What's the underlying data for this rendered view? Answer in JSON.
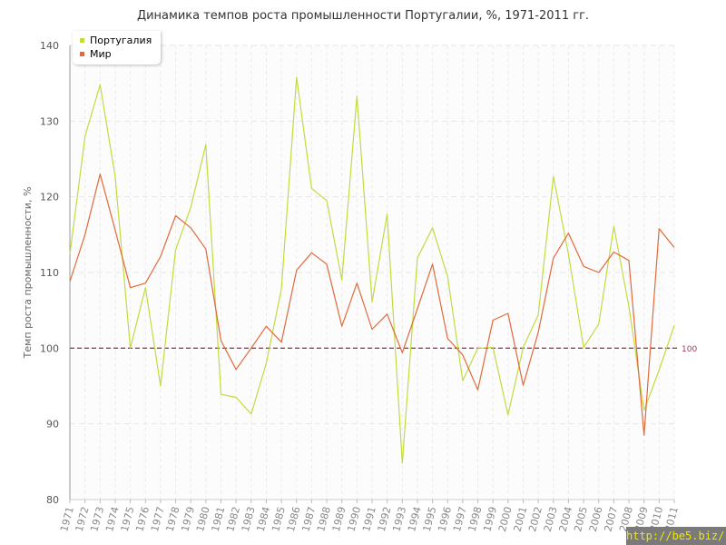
{
  "chart_data": {
    "type": "line",
    "title": "Динамика темпов роста промышленности Португалии, %, 1971-2011 гг.",
    "xlabel": "",
    "ylabel": "Темп роста промышленности, %",
    "ylim": [
      80,
      140
    ],
    "yticks": [
      80,
      90,
      100,
      110,
      120,
      130,
      140
    ],
    "grid": true,
    "legend_position": "top-left",
    "x": [
      "1971",
      "1972",
      "1973",
      "1974",
      "1975",
      "1976",
      "1977",
      "1978",
      "1979",
      "1980",
      "1981",
      "1982",
      "1983",
      "1984",
      "1985",
      "1986",
      "1987",
      "1988",
      "1989",
      "1990",
      "1991",
      "1992",
      "1993",
      "1994",
      "1995",
      "1996",
      "1997",
      "1998",
      "1999",
      "2000",
      "2001",
      "2002",
      "2003",
      "2004",
      "2005",
      "2006",
      "2007",
      "2008",
      "2009",
      "2010",
      "2011"
    ],
    "series": [
      {
        "name": "Португалия",
        "color": "#c1dc3f",
        "values": [
          112.4,
          128.0,
          134.8,
          122.7,
          100.0,
          108.0,
          95.0,
          113.0,
          118.6,
          126.9,
          93.9,
          93.5,
          91.3,
          98.0,
          107.8,
          135.8,
          121.1,
          119.5,
          109.0,
          133.3,
          106.1,
          117.7,
          84.8,
          111.9,
          115.9,
          109.5,
          95.7,
          100.0,
          100.1,
          91.2,
          100.1,
          104.4,
          122.7,
          112.4,
          100.1,
          103.2,
          116.1,
          105.5,
          91.8,
          97.1,
          103.0
        ]
      },
      {
        "name": "Мир",
        "color": "#e06a3a",
        "values": [
          108.8,
          115.0,
          123.0,
          115.6,
          108.0,
          108.6,
          112.1,
          117.5,
          115.9,
          113.1,
          101.0,
          97.2,
          100.0,
          102.9,
          100.8,
          110.3,
          112.6,
          111.1,
          102.9,
          108.6,
          102.5,
          104.5,
          99.4,
          105.2,
          111.1,
          101.3,
          99.1,
          94.5,
          103.7,
          104.6,
          95.1,
          102.1,
          111.9,
          115.2,
          110.8,
          110.0,
          112.7,
          111.6,
          88.5,
          115.8,
          113.3
        ]
      }
    ],
    "reference_line": {
      "value": 100,
      "label": "100",
      "color": "#a83c5a"
    }
  },
  "watermark": "http://be5.biz/"
}
